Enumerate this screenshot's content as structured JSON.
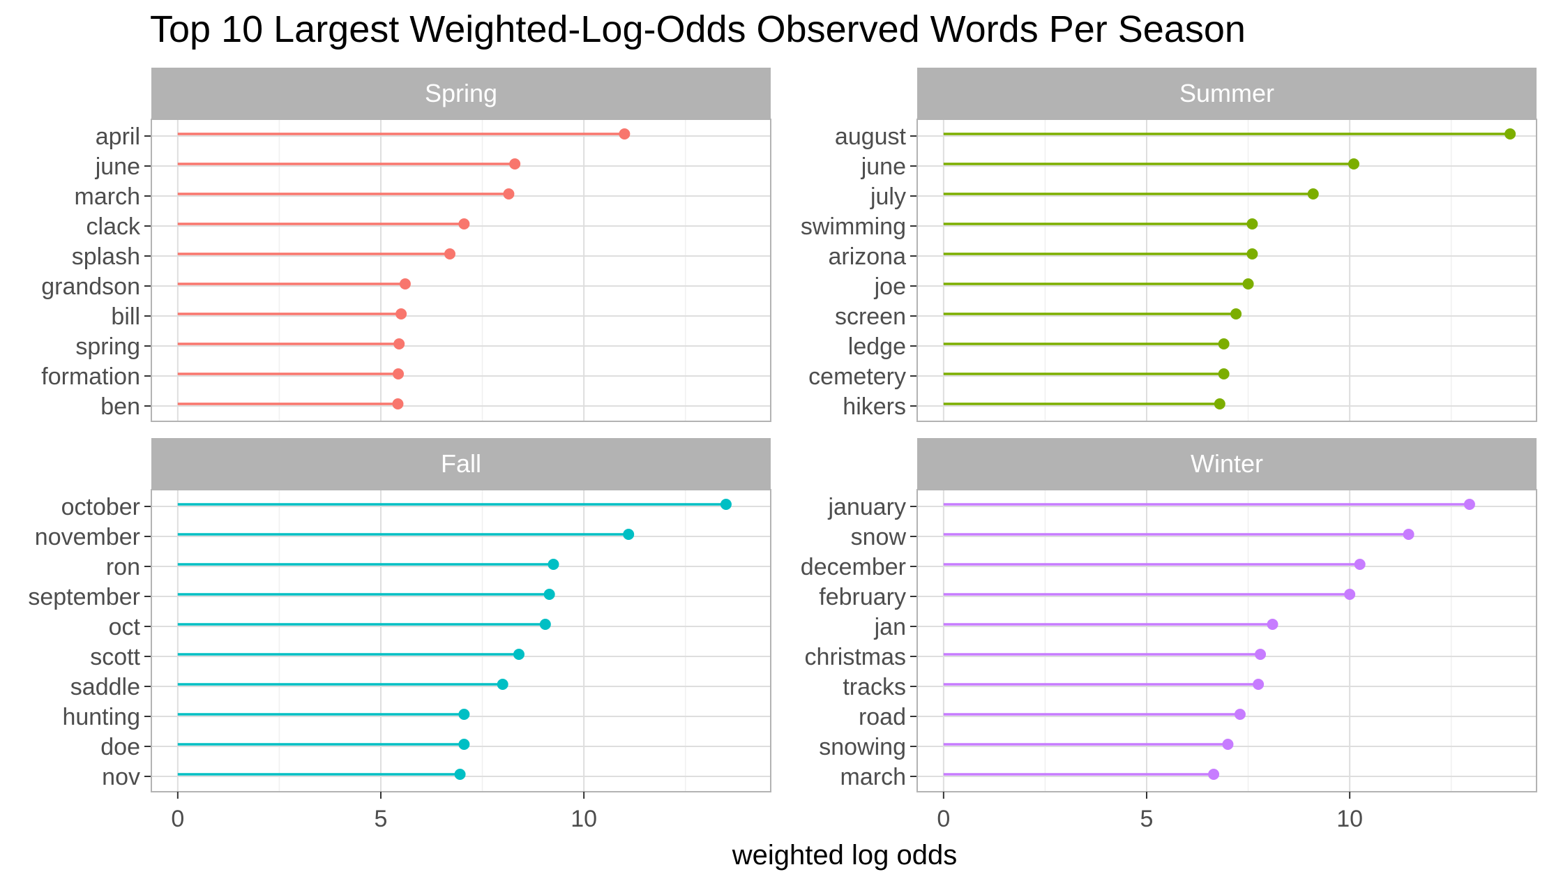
{
  "chart_data": {
    "type": "lollipop",
    "title": "Top 10 Largest Weighted-Log-Odds Observed Words Per Season",
    "xlabel": "weighted log odds",
    "ylabel": "",
    "xlim": [
      -0.65,
      14.6
    ],
    "xticks": [
      0,
      5,
      10
    ],
    "grid": true,
    "facets": [
      {
        "name": "Spring",
        "color": "#F8766D",
        "categories": [
          "april",
          "june",
          "march",
          "clack",
          "splash",
          "grandson",
          "bill",
          "spring",
          "formation",
          "ben"
        ],
        "values": [
          11.0,
          8.3,
          8.15,
          7.05,
          6.7,
          5.6,
          5.5,
          5.45,
          5.43,
          5.42
        ]
      },
      {
        "name": "Summer",
        "color": "#7CAE00",
        "categories": [
          "august",
          "june",
          "july",
          "swimming",
          "arizona",
          "joe",
          "screen",
          "ledge",
          "cemetery",
          "hikers"
        ],
        "values": [
          13.95,
          10.1,
          9.1,
          7.6,
          7.6,
          7.5,
          7.2,
          6.9,
          6.9,
          6.8
        ]
      },
      {
        "name": "Fall",
        "color": "#00BFC4",
        "categories": [
          "october",
          "november",
          "ron",
          "september",
          "oct",
          "scott",
          "saddle",
          "hunting",
          "doe",
          "nov"
        ],
        "values": [
          13.5,
          11.1,
          9.25,
          9.15,
          9.05,
          8.4,
          8.0,
          7.05,
          7.05,
          6.95
        ]
      },
      {
        "name": "Winter",
        "color": "#C77CFF",
        "categories": [
          "january",
          "snow",
          "december",
          "february",
          "jan",
          "christmas",
          "tracks",
          "road",
          "snowing",
          "march"
        ],
        "values": [
          12.95,
          11.45,
          10.25,
          10.0,
          8.1,
          7.8,
          7.75,
          7.3,
          7.0,
          6.65
        ]
      }
    ]
  }
}
